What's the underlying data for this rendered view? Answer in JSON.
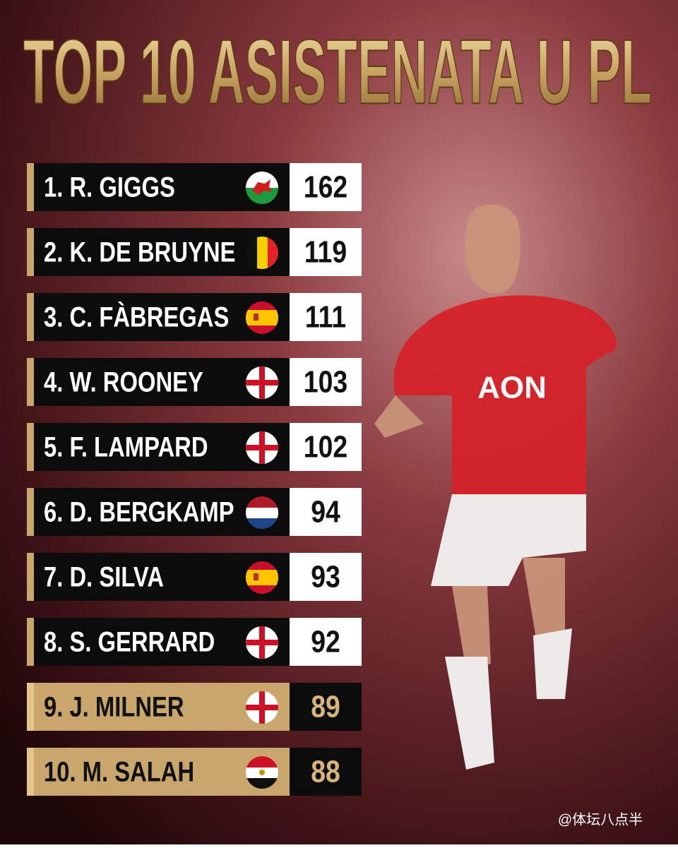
{
  "title": "TOP 10 ASISTENATA U PL",
  "rows": [
    {
      "label": "1. R. GIGGS",
      "value": 162
    },
    {
      "label": "2. K. DE BRUYNE",
      "value": 119
    },
    {
      "label": "3. C. FÀBREGAS",
      "value": 111
    },
    {
      "label": "4. W. ROONEY",
      "value": 103
    },
    {
      "label": "5. F. LAMPARD",
      "value": 102
    },
    {
      "label": "6. D. BERGKAMP",
      "value": 94
    },
    {
      "label": "7. D. SILVA",
      "value": 93
    },
    {
      "label": "8. S. GERRARD",
      "value": 92
    },
    {
      "label": "9. J. MILNER",
      "value": 89
    },
    {
      "label": "10. M. SALAH",
      "value": 88
    }
  ],
  "watermark": "@体坛八点半"
}
